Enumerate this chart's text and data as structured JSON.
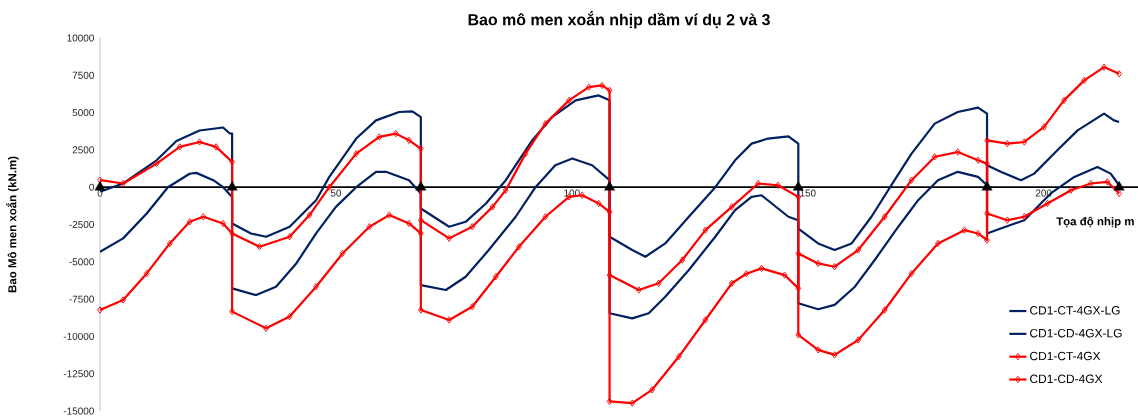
{
  "chart_data": {
    "type": "line",
    "title": "Bao mô men xoắn nhịp dầm ví dụ 2 và 3",
    "xlabel": "Tọa độ nhịp m",
    "ylabel": "Bao Mô men xoắn (kN.m)",
    "xlim": [
      0,
      220
    ],
    "xticks": [
      0,
      50,
      100,
      150,
      200
    ],
    "ylim": [
      -15000,
      10000
    ],
    "yticks": [
      -15000,
      -12500,
      -10000,
      -7500,
      -5000,
      -2500,
      0,
      2500,
      5000,
      7500,
      10000
    ],
    "legend": "bottom right",
    "marker": "none",
    "series": [
      {
        "name": "CD1-CT-4GX-LG",
        "color": "#002060",
        "x": [
          0,
          4.9,
          12,
          16.2,
          21.1,
          26.1,
          27.5,
          28,
          28,
          33.1,
          37.3,
          41.6,
          45.8,
          50,
          54.3,
          58.5,
          60.6,
          65.5,
          68,
          68,
          74,
          77.5,
          81.8,
          86,
          91.6,
          95.8,
          100.8,
          105.7,
          108,
          108,
          112.8,
          116.3,
          119.8,
          124.8,
          130.4,
          134.6,
          138.1,
          140.2,
          145.9,
          148,
          148,
          152.2,
          155.7,
          159.3,
          163.5,
          168.4,
          172,
          176.9,
          181.8,
          186.1,
          188,
          188,
          190.9,
          195.9,
          201.5,
          206.5,
          211.4,
          214.2,
          216
        ],
        "values": [
          -300,
          250,
          1800,
          3100,
          3800,
          4000,
          3600,
          3600,
          -6780,
          -7230,
          -6670,
          -5110,
          -3100,
          -1320,
          0,
          1030,
          1030,
          470,
          -420,
          -1430,
          -2650,
          -2320,
          -1090,
          470,
          3140,
          4700,
          5820,
          6150,
          5820,
          -8450,
          -8790,
          -8450,
          -7340,
          -5550,
          -3320,
          -1540,
          -650,
          -540,
          -1980,
          -2210,
          -2770,
          -3770,
          -4210,
          -3770,
          -1980,
          470,
          2250,
          4260,
          5040,
          5330,
          4930,
          -3100,
          -2770,
          -2210,
          -420,
          690,
          1360,
          910,
          130
        ]
      },
      {
        "name": "CD1-CD-4GX-LG",
        "color": "#002060",
        "x": [
          0,
          4.9,
          9.9,
          14.4,
          19,
          20.4,
          24,
          26.1,
          28,
          28,
          32,
          35.2,
          40.2,
          45.8,
          48.6,
          54.3,
          58.5,
          63.4,
          66.2,
          68,
          68,
          73.3,
          77.5,
          82.4,
          88.1,
          92.3,
          96.5,
          100.1,
          104.3,
          108,
          108,
          112.8,
          115.6,
          119.8,
          124.8,
          130.4,
          134.6,
          138.1,
          141.6,
          145.9,
          148,
          148,
          152.2,
          155.7,
          160,
          164.2,
          169.2,
          173.4,
          177.6,
          181.8,
          186.1,
          188,
          188,
          190.9,
          195.2,
          198,
          202.9,
          207.2,
          212.8,
          214.9,
          216
        ],
        "values": [
          -4330,
          -3430,
          -1760,
          0,
          900,
          960,
          470,
          0,
          -650,
          -2430,
          -3100,
          -3320,
          -2650,
          -870,
          690,
          3260,
          4480,
          5040,
          5080,
          4700,
          -6560,
          -6890,
          -6000,
          -4210,
          -1980,
          0,
          1470,
          1920,
          1470,
          470,
          -3320,
          -4210,
          -4660,
          -3770,
          -1980,
          0,
          1800,
          2920,
          3260,
          3410,
          2920,
          -7780,
          -8180,
          -7890,
          -6670,
          -4880,
          -2650,
          -870,
          470,
          1030,
          690,
          130,
          1470,
          1030,
          470,
          910,
          2480,
          3810,
          4930,
          4480,
          4370
        ]
      },
      {
        "name": "CD1-CT-4GX",
        "color": "#ff0000",
        "marker": "diamond",
        "x": [
          0,
          4.9,
          12,
          16.9,
          21.1,
          24.6,
          28,
          28,
          35.2,
          40.2,
          45.8,
          51.4,
          57.1,
          61.3,
          65.5,
          68,
          68,
          74,
          78.9,
          83.2,
          86,
          90.2,
          94.4,
          99.4,
          103.6,
          106.4,
          108,
          108,
          112.8,
          117,
          122.7,
          128.3,
          133.9,
          137,
          140.2,
          145.1,
          148,
          148,
          152.2,
          155.7,
          160.7,
          166.3,
          172,
          176.9,
          181.8,
          186.1,
          188,
          188,
          192.3,
          195.9,
          200.8,
          205.8,
          210,
          213.5,
          216
        ],
        "values": [
          470,
          250,
          1580,
          2700,
          3030,
          2700,
          1700,
          -8340,
          -9460,
          -8670,
          -6670,
          -4440,
          -2650,
          -1870,
          -2430,
          -3100,
          -2210,
          -3430,
          -2650,
          -1320,
          -200,
          2250,
          4260,
          5820,
          6710,
          6820,
          6490,
          -14360,
          -14470,
          -13580,
          -11350,
          -8900,
          -6440,
          -5800,
          -5440,
          -5890,
          -6780,
          -4440,
          -5110,
          -5330,
          -4210,
          -1980,
          470,
          2030,
          2360,
          1810,
          1580,
          -1760,
          -2210,
          -1980,
          -1090,
          -200,
          250,
          360,
          -420
        ]
      },
      {
        "name": "CD1-CD-4GX",
        "color": "#ff0000",
        "marker": "diamond",
        "x": [
          0,
          4.9,
          9.9,
          14.8,
          19,
          21.9,
          26.1,
          28,
          33.8,
          40.2,
          44.4,
          48.6,
          54.3,
          59.2,
          62.7,
          65.5,
          68,
          68,
          74,
          78.9,
          83.9,
          88.8,
          94.4,
          99.4,
          102.2,
          105.7,
          108,
          108,
          114.2,
          118.4,
          123.4,
          128.3,
          133.9,
          139.5,
          143.7,
          148,
          148,
          152.2,
          155.7,
          160.7,
          166.3,
          172,
          177.6,
          183.2,
          186.1,
          188,
          188,
          192.3,
          195.9,
          200.1,
          204.3,
          208.6,
          212.8,
          216
        ],
        "values": [
          -8230,
          -7560,
          -5780,
          -3770,
          -2320,
          -1980,
          -2430,
          -3100,
          -3990,
          -3320,
          -1870,
          0,
          2250,
          3370,
          3590,
          3140,
          2590,
          -8230,
          -8900,
          -8010,
          -6000,
          -3990,
          -1980,
          -650,
          -540,
          -1090,
          -1650,
          -5890,
          -6890,
          -6440,
          -4880,
          -2880,
          -1320,
          250,
          130,
          -650,
          -9900,
          -10900,
          -11240,
          -10240,
          -8230,
          -5780,
          -3770,
          -2880,
          -3100,
          -3550,
          3140,
          2920,
          3030,
          4040,
          5820,
          7160,
          8050,
          7600
        ]
      },
      {
        "type": "scatter",
        "color": "#000000",
        "marker": "triangle",
        "x": [
          0,
          28,
          68,
          108,
          148,
          188,
          216
        ],
        "values": [
          0,
          0,
          0,
          0,
          0,
          0,
          0
        ]
      }
    ]
  }
}
